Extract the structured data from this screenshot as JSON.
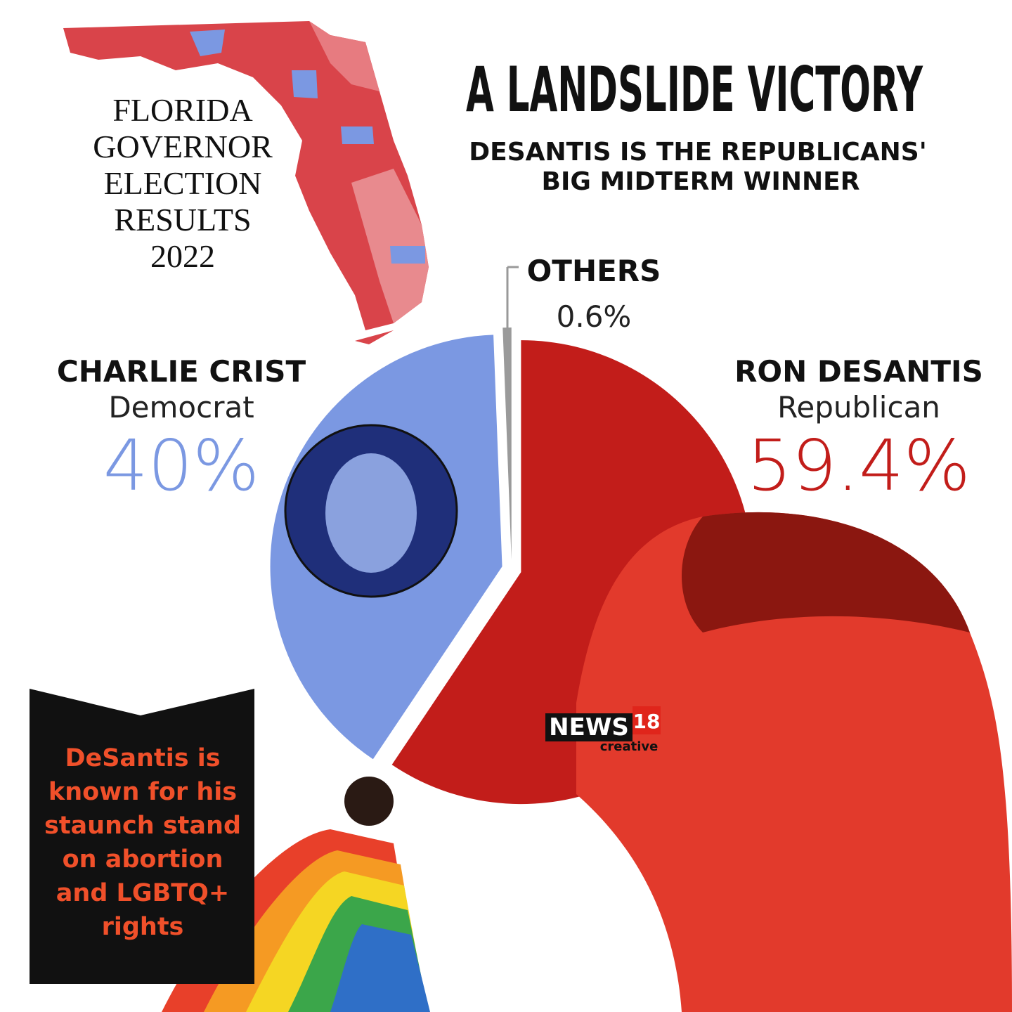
{
  "chart_data": {
    "type": "pie",
    "title": "A LANDSLIDE VICTORY",
    "subtitle": [
      "DESANTIS IS THE REPUBLICANS'",
      "BIG MIDTERM WINNER"
    ],
    "categories": [
      "RON DESANTIS",
      "CHARLIE CRIST",
      "OTHERS"
    ],
    "parties": [
      "Republican",
      "Democrat",
      null
    ],
    "values": [
      59.4,
      40,
      0.6
    ],
    "value_labels": [
      "59.4%",
      "40%",
      "0.6%"
    ],
    "colors": [
      "#c21d1a",
      "#7b98e2",
      "#9a9a9a"
    ]
  },
  "map_label": [
    "FLORIDA",
    "GOVERNOR",
    "ELECTION",
    "RESULTS",
    "2022"
  ],
  "callout": [
    "DeSantis is",
    "known for his",
    "staunch stand",
    "on abortion",
    "and LGBTQ+",
    "rights"
  ],
  "logo": {
    "brand": "NEWS",
    "number": "18",
    "tag": "creative"
  }
}
